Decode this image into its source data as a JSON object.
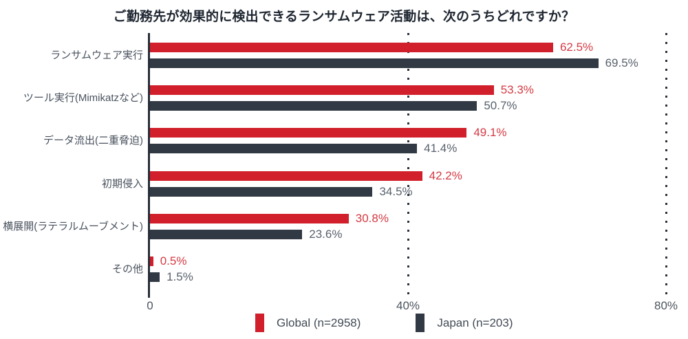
{
  "title": "ご勤務先が効果的に検出できるランサムウェア活動は、次のうちどれですか？",
  "chart_data": {
    "type": "bar",
    "orientation": "horizontal",
    "title": "ご勤務先が効果的に検出できるランサムウェア活動は、次のうちどれですか？",
    "categories": [
      "ランサムウェア実行",
      "ツール実行(Mimikatzなど)",
      "データ流出(二重脅迫)",
      "初期侵入",
      "横展開(ラテラルムーブメント)",
      "その他"
    ],
    "series": [
      {
        "name": "Global (n=2958)",
        "color": "#d1202c",
        "label_color": "#d43a43",
        "values": [
          62.5,
          53.3,
          49.1,
          42.2,
          30.8,
          0.5
        ]
      },
      {
        "name": "Japan (n=203)",
        "color": "#313944",
        "label_color": "#59616c",
        "values": [
          69.5,
          50.7,
          41.4,
          34.5,
          23.6,
          1.5
        ]
      }
    ],
    "value_suffix": "%",
    "xlim": [
      0,
      80
    ],
    "x_ticks": [
      "0",
      "40%",
      "80%"
    ],
    "x_tick_values": [
      0,
      40,
      80
    ],
    "gridlines": {
      "style": "dotted",
      "at": [
        40,
        80
      ]
    },
    "legend_position": "bottom",
    "grid_color": "#2a313b",
    "axis_color": "#272e38"
  },
  "legend": {
    "items": [
      {
        "label": "Global (n=2958)",
        "color": "#d1202c"
      },
      {
        "label": "Japan (n=203)",
        "color": "#313944"
      }
    ]
  }
}
